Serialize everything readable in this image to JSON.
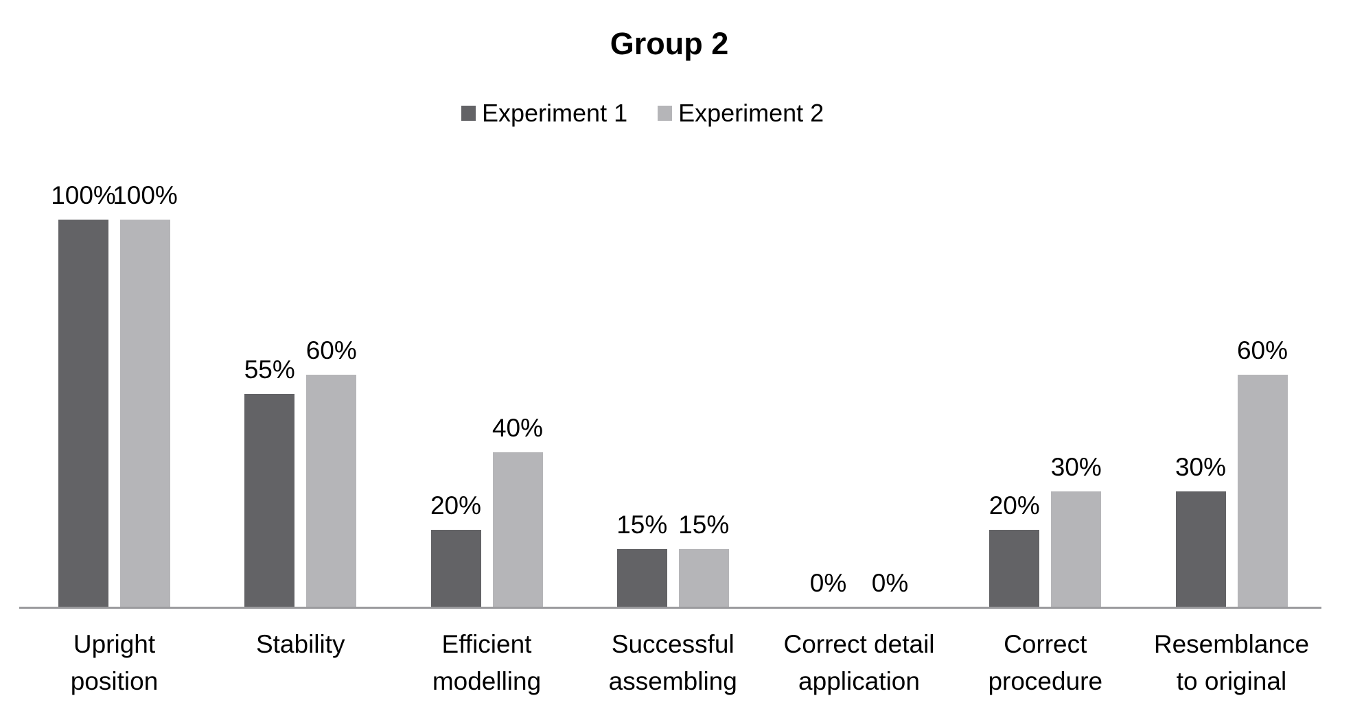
{
  "chart_data": {
    "type": "bar",
    "title": "Group 2",
    "categories": [
      "Upright position",
      "Stability",
      "Efficient modelling",
      "Successful assembling",
      "Correct detail application",
      "Correct procedure",
      "Resemblance to original"
    ],
    "category_lines": [
      [
        "Upright",
        "position"
      ],
      [
        "Stability"
      ],
      [
        "Efficient",
        "modelling"
      ],
      [
        "Successful",
        "assembling"
      ],
      [
        "Correct detail",
        "application"
      ],
      [
        "Correct",
        "procedure"
      ],
      [
        "Resemblance",
        "to original"
      ]
    ],
    "series": [
      {
        "name": "Experiment 1",
        "color": "#636366",
        "values": [
          100,
          55,
          20,
          15,
          0,
          20,
          30
        ]
      },
      {
        "name": "Experiment 2",
        "color": "#b5b5b8",
        "values": [
          100,
          60,
          40,
          15,
          0,
          30,
          60
        ]
      }
    ],
    "data_labels": [
      [
        "100%",
        "55%",
        "20%",
        "15%",
        "0%",
        "20%",
        "30%"
      ],
      [
        "100%",
        "60%",
        "40%",
        "15%",
        "0%",
        "30%",
        "60%"
      ]
    ],
    "value_unit": "%",
    "ylim": [
      0,
      100
    ],
    "grid": false,
    "legend_position": "top-center",
    "axis_color": "#9b9b9e",
    "background_color": "#ffffff",
    "text_color": "#000000"
  }
}
